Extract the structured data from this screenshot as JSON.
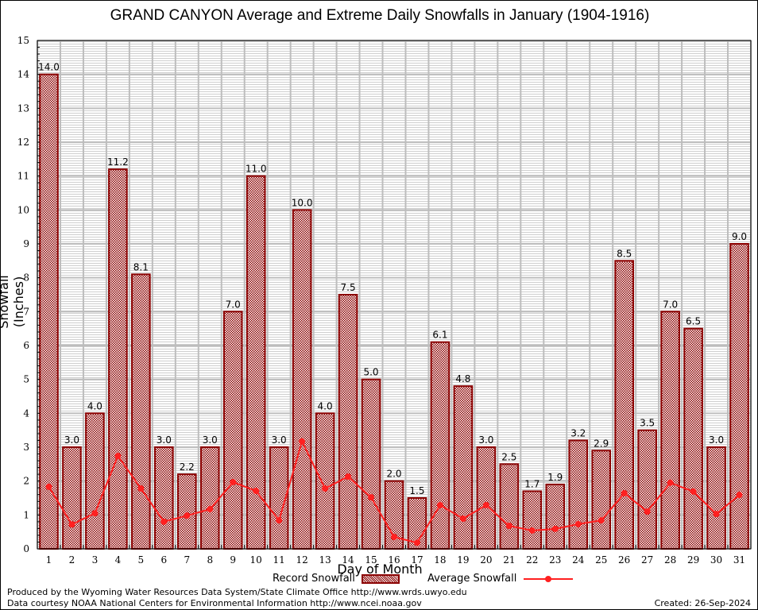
{
  "chart_data": {
    "type": "bar",
    "title": "GRAND CANYON Average and Extreme Daily Snowfalls in January (1904-1916)",
    "xlabel": "Day of Month",
    "ylabel": "Snowfall (Inches)",
    "ylim": [
      0,
      15
    ],
    "yticks": [
      0,
      1,
      2,
      3,
      4,
      5,
      6,
      7,
      8,
      9,
      10,
      11,
      12,
      13,
      14,
      15
    ],
    "grid": true,
    "legend_position": "bottom-center",
    "categories": [
      "1",
      "2",
      "3",
      "4",
      "5",
      "6",
      "7",
      "8",
      "9",
      "10",
      "11",
      "12",
      "13",
      "14",
      "15",
      "16",
      "17",
      "18",
      "19",
      "20",
      "21",
      "22",
      "23",
      "24",
      "25",
      "26",
      "27",
      "28",
      "29",
      "30",
      "31"
    ],
    "series": [
      {
        "name": "Record Snowfall",
        "type": "bar",
        "color": "#8b0000",
        "values": [
          14.0,
          3.0,
          4.0,
          11.2,
          8.1,
          3.0,
          2.2,
          3.0,
          7.0,
          11.0,
          3.0,
          10.0,
          4.0,
          7.5,
          5.0,
          2.0,
          1.5,
          6.1,
          4.8,
          3.0,
          2.5,
          1.7,
          1.9,
          3.2,
          2.9,
          8.5,
          3.5,
          7.0,
          6.5,
          3.0,
          9.0
        ],
        "labels": [
          "14.0",
          "3.0",
          "4.0",
          "11.2",
          "8.1",
          "3.0",
          "2.2",
          "3.0",
          "7.0",
          "11.0",
          "3.0",
          "10.0",
          "4.0",
          "7.5",
          "5.0",
          "2.0",
          "1.5",
          "6.1",
          "4.8",
          "3.0",
          "2.5",
          "1.7",
          "1.9",
          "3.2",
          "2.9",
          "8.5",
          "3.5",
          "7.0",
          "6.5",
          "3.0",
          "9.0"
        ]
      },
      {
        "name": "Average Snowfall",
        "type": "line",
        "color": "#ff2020",
        "values": [
          1.83,
          0.72,
          1.05,
          2.74,
          1.78,
          0.8,
          0.98,
          1.17,
          1.97,
          1.71,
          0.84,
          3.17,
          1.78,
          2.13,
          1.52,
          0.35,
          0.18,
          1.29,
          0.89,
          1.29,
          0.68,
          0.54,
          0.59,
          0.73,
          0.84,
          1.64,
          1.1,
          1.95,
          1.69,
          1.03,
          1.59
        ]
      }
    ]
  },
  "legend": {
    "record_label": "Record Snowfall",
    "average_label": "Average Snowfall"
  },
  "footer": {
    "line1": "Produced by the Wyoming Water Resources Data System/State Climate Office http://www.wrds.uwyo.edu",
    "line2": "Data courtesy NOAA National Centers for Environmental Information http://www.ncei.noaa.gov",
    "created": "Created: 26-Sep-2024"
  }
}
